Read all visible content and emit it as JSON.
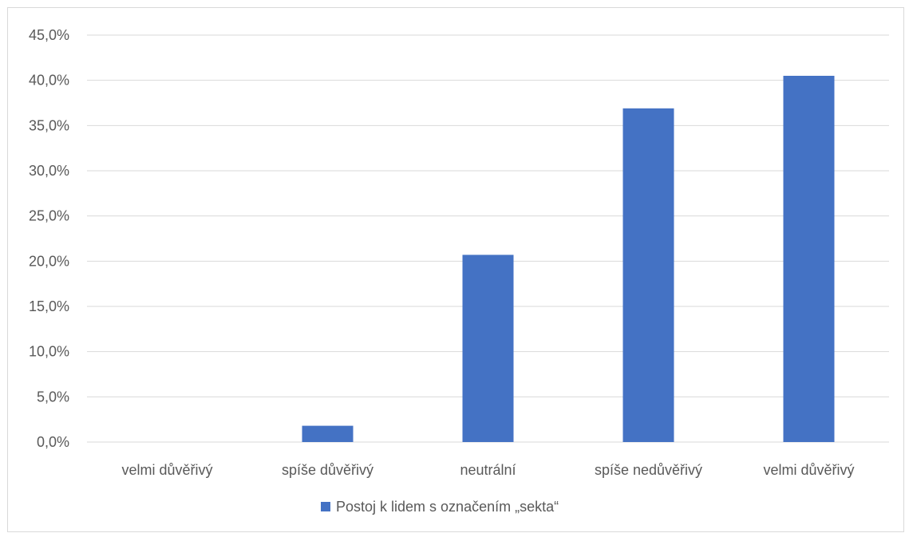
{
  "chart_data": {
    "type": "bar",
    "categories": [
      "velmi důvěřivý",
      "spíše důvěřivý",
      "neutrální",
      "spíše nedůvěřivý",
      "velmi důvěřivý"
    ],
    "series": [
      {
        "name": "Postoj k lidem s označením „sekta“",
        "values": [
          0.0,
          1.8,
          20.7,
          36.9,
          40.5
        ],
        "color": "#4472c4"
      }
    ],
    "ylim": [
      0,
      45
    ],
    "yticks": [
      0,
      5,
      10,
      15,
      20,
      25,
      30,
      35,
      40,
      45
    ],
    "ytick_labels": [
      "0,0%",
      "5,0%",
      "10,0%",
      "15,0%",
      "20,0%",
      "25,0%",
      "30,0%",
      "35,0%",
      "40,0%",
      "45,0%"
    ],
    "grid": true,
    "legend_position": "bottom",
    "gridline_color": "#d9d9d9",
    "text_color": "#595959"
  }
}
